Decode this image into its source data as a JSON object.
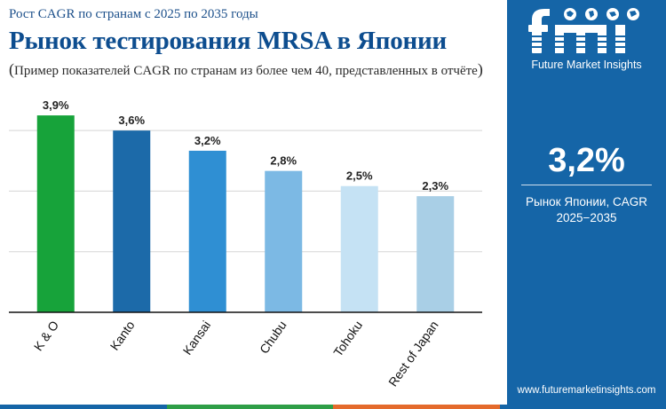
{
  "header": {
    "subtitle": "Рост CAGR по странам с 2025 по 2035 годы",
    "title": "Рынок тестирования MRSA в Японии",
    "note": "Пример показателей CAGR по странам из более чем 40, представленных в отчёте",
    "note_open": "(",
    "note_close": ")"
  },
  "sidebar": {
    "brand": "Future Market Insights",
    "logo_text": "fmi",
    "cagr_value": "3,2%",
    "cagr_label_line1": "Рынок Японии, CAGR",
    "cagr_label_line2": "2025−2035",
    "website": "www.futuremarketinsights.com",
    "background_color": "#1565a7"
  },
  "chart_data": {
    "type": "bar",
    "categories": [
      "K & O",
      "Kanto",
      "Kansai",
      "Chubu",
      "Tohoku",
      "Rest of Japan"
    ],
    "values": [
      3.9,
      3.6,
      3.2,
      2.8,
      2.5,
      2.3
    ],
    "data_labels": [
      "3,9%",
      "3,6%",
      "3,2%",
      "2,8%",
      "2,5%",
      "2,3%"
    ],
    "colors": [
      "#17a33a",
      "#1c6aa9",
      "#2f8fd3",
      "#7cb9e4",
      "#c5e2f4",
      "#a9cfe6"
    ],
    "ylim": [
      0,
      4.2
    ],
    "grid": true,
    "xlabel": "",
    "ylabel": ""
  },
  "bottom_strip_colors": [
    "#1565a7",
    "#2e9e47",
    "#e46a2c",
    "#1565a7"
  ]
}
